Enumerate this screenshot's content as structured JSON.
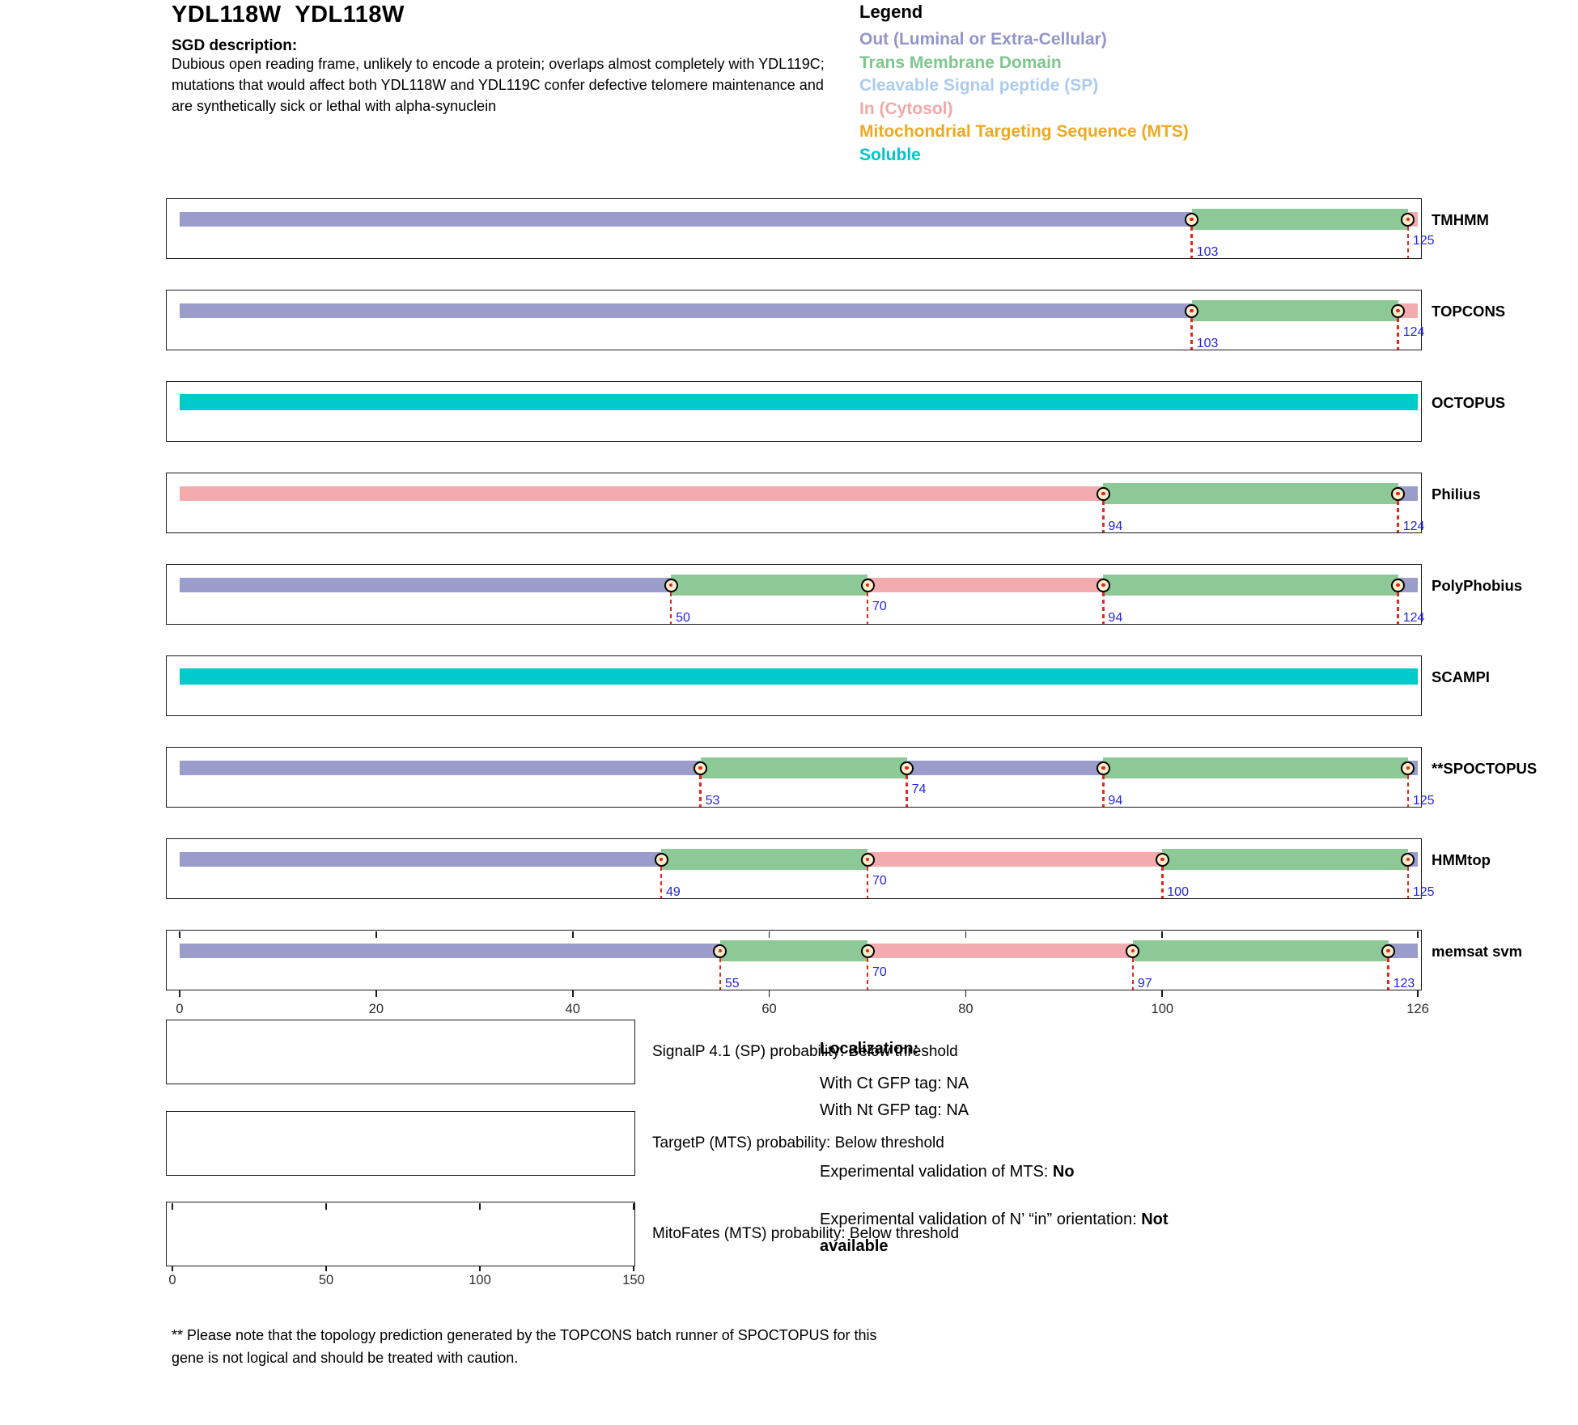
{
  "header": {
    "title": "YDL118W  YDL118W",
    "sgd_label": "SGD description:",
    "description": "Dubious open reading frame, unlikely to encode a protein; overlaps almost completely with YDL119C; mutations that would affect both YDL118W and YDL119C confer defective telomere maintenance and are synthetically sick or lethal with alpha-synuclein"
  },
  "legend": {
    "title": "Legend",
    "items": [
      {
        "key": "out",
        "label": "Out (Luminal or Extra-Cellular)",
        "color": "#9295ca"
      },
      {
        "key": "tm",
        "label": "Trans Membrane Domain",
        "color": "#7ec78d"
      },
      {
        "key": "sp",
        "label": "Cleavable Signal peptide (SP)",
        "color": "#abcbf0"
      },
      {
        "key": "in",
        "label": "In (Cytosol)",
        "color": "#f4a7a7"
      },
      {
        "key": "mts",
        "label": "Mitochondrial Targeting Sequence (MTS)",
        "color": "#efa820"
      },
      {
        "key": "soluble",
        "label": "Soluble",
        "color": "#00c5c9"
      }
    ]
  },
  "chart_data": {
    "type": "topology-tracks",
    "x_axis": {
      "min": 0,
      "max": 126,
      "ticks": [
        0,
        20,
        40,
        60,
        80,
        100,
        126
      ]
    },
    "region_colors": {
      "out": "#9a9ccc",
      "tm": "#8dc997",
      "in": "#f2acae",
      "sp": "#abcbf0",
      "soluble": "#00cbcb"
    },
    "boundary_label_color": "#2424dd",
    "tracks": [
      {
        "name": "TMHMM",
        "segments": [
          {
            "type": "out",
            "start": 0,
            "end": 103
          },
          {
            "type": "tm",
            "start": 103,
            "end": 125
          },
          {
            "type": "in",
            "start": 125,
            "end": 126
          }
        ],
        "boundaries": [
          {
            "pos": 103,
            "label": "103",
            "level": "low"
          },
          {
            "pos": 125,
            "label": "125",
            "level": "mid"
          }
        ],
        "show_ticks": false
      },
      {
        "name": "TOPCONS",
        "segments": [
          {
            "type": "out",
            "start": 0,
            "end": 103
          },
          {
            "type": "tm",
            "start": 103,
            "end": 124
          },
          {
            "type": "in",
            "start": 124,
            "end": 126
          }
        ],
        "boundaries": [
          {
            "pos": 103,
            "label": "103",
            "level": "low"
          },
          {
            "pos": 124,
            "label": "124",
            "level": "mid"
          }
        ],
        "show_ticks": false
      },
      {
        "name": "OCTOPUS",
        "segments": [
          {
            "type": "soluble",
            "start": 0,
            "end": 126
          }
        ],
        "boundaries": [],
        "show_ticks": false
      },
      {
        "name": "Philius",
        "segments": [
          {
            "type": "in",
            "start": 0,
            "end": 94
          },
          {
            "type": "tm",
            "start": 94,
            "end": 124
          },
          {
            "type": "out",
            "start": 124,
            "end": 126
          }
        ],
        "boundaries": [
          {
            "pos": 94,
            "label": "94",
            "level": "low"
          },
          {
            "pos": 124,
            "label": "124",
            "level": "low"
          }
        ],
        "show_ticks": false
      },
      {
        "name": "PolyPhobius",
        "segments": [
          {
            "type": "out",
            "start": 0,
            "end": 50
          },
          {
            "type": "tm",
            "start": 50,
            "end": 70
          },
          {
            "type": "in",
            "start": 70,
            "end": 94
          },
          {
            "type": "tm",
            "start": 94,
            "end": 124
          },
          {
            "type": "out",
            "start": 124,
            "end": 126
          }
        ],
        "boundaries": [
          {
            "pos": 50,
            "label": "50",
            "level": "low"
          },
          {
            "pos": 70,
            "label": "70",
            "level": "mid"
          },
          {
            "pos": 94,
            "label": "94",
            "level": "low"
          },
          {
            "pos": 124,
            "label": "124",
            "level": "low"
          }
        ],
        "show_ticks": false
      },
      {
        "name": "SCAMPI",
        "segments": [
          {
            "type": "soluble",
            "start": 0,
            "end": 126
          }
        ],
        "boundaries": [],
        "show_ticks": false
      },
      {
        "name": "**SPOCTOPUS",
        "segments": [
          {
            "type": "out",
            "start": 0,
            "end": 53
          },
          {
            "type": "tm",
            "start": 53,
            "end": 74
          },
          {
            "type": "out",
            "start": 74,
            "end": 94
          },
          {
            "type": "tm",
            "start": 94,
            "end": 125
          },
          {
            "type": "out",
            "start": 125,
            "end": 126
          }
        ],
        "boundaries": [
          {
            "pos": 53,
            "label": "53",
            "level": "low"
          },
          {
            "pos": 74,
            "label": "74",
            "level": "mid"
          },
          {
            "pos": 94,
            "label": "94",
            "level": "low"
          },
          {
            "pos": 125,
            "label": "125",
            "level": "low"
          }
        ],
        "show_ticks": false
      },
      {
        "name": "HMMtop",
        "segments": [
          {
            "type": "out",
            "start": 0,
            "end": 49
          },
          {
            "type": "tm",
            "start": 49,
            "end": 70
          },
          {
            "type": "in",
            "start": 70,
            "end": 100
          },
          {
            "type": "tm",
            "start": 100,
            "end": 125
          },
          {
            "type": "out",
            "start": 125,
            "end": 126
          }
        ],
        "boundaries": [
          {
            "pos": 49,
            "label": "49",
            "level": "low"
          },
          {
            "pos": 70,
            "label": "70",
            "level": "mid"
          },
          {
            "pos": 100,
            "label": "100",
            "level": "low"
          },
          {
            "pos": 125,
            "label": "125",
            "level": "low"
          }
        ],
        "show_ticks": false
      },
      {
        "name": "memsat svm",
        "segments": [
          {
            "type": "out",
            "start": 0,
            "end": 55
          },
          {
            "type": "tm",
            "start": 55,
            "end": 70
          },
          {
            "type": "in",
            "start": 70,
            "end": 97
          },
          {
            "type": "tm",
            "start": 97,
            "end": 123
          },
          {
            "type": "out",
            "start": 123,
            "end": 126
          }
        ],
        "boundaries": [
          {
            "pos": 55,
            "label": "55",
            "level": "low"
          },
          {
            "pos": 70,
            "label": "70",
            "level": "mid"
          },
          {
            "pos": 97,
            "label": "97",
            "level": "low"
          },
          {
            "pos": 123,
            "label": "123",
            "level": "low"
          }
        ],
        "show_ticks": true
      }
    ]
  },
  "probability_plots": [
    {
      "label": "SignalP 4.1 (SP) probability: Below threshold",
      "axis_ticks": []
    },
    {
      "label": "TargetP (MTS) probability: Below threshold",
      "axis_ticks": []
    },
    {
      "label": "MitoFates (MTS) probability: Below threshold",
      "axis_ticks": [
        0,
        50,
        100,
        150
      ]
    }
  ],
  "localization": {
    "title": "Localization:",
    "lines": [
      "With Ct GFP tag: NA",
      "With Nt GFP tag: NA"
    ],
    "mts_label": "Experimental validation of MTS: ",
    "mts_value": "No",
    "orientation_label": "Experimental validation of N’ “in” orientation: ",
    "orientation_value": "Not available"
  },
  "footnote": "** Please note that the topology prediction generated by the TOPCONS batch runner of SPOCTOPUS for this gene is not logical and should be treated with caution."
}
